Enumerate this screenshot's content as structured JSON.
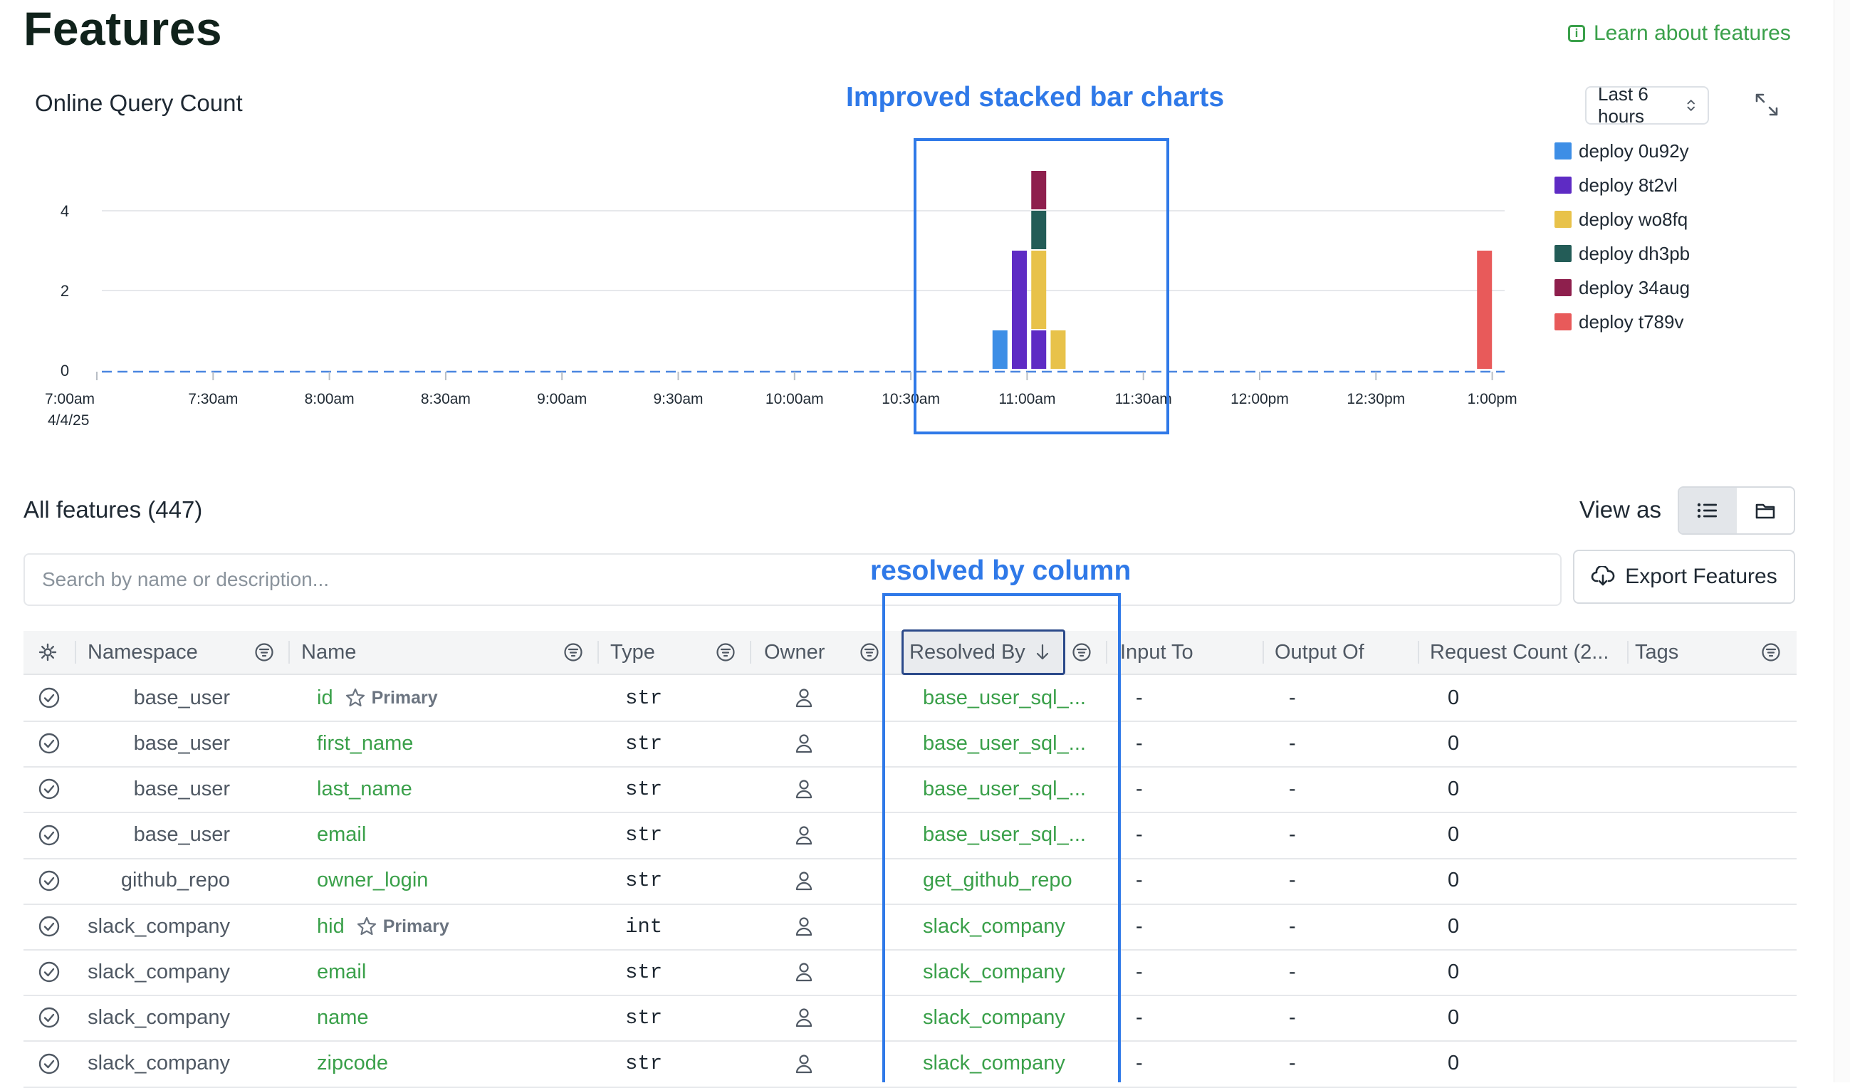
{
  "header": {
    "title": "Features",
    "learn_link": "Learn about features"
  },
  "chart_card": {
    "title": "Online Query Count",
    "time_range": "Last 6 hours",
    "annotation": "Improved stacked bar charts"
  },
  "chart_data": {
    "type": "bar",
    "stacked": true,
    "title": "Online Query Count",
    "ylim": [
      0,
      5
    ],
    "y_ticks": [
      "0",
      "2",
      "4"
    ],
    "x_ticks": [
      "7:00am",
      "7:30am",
      "8:00am",
      "8:30am",
      "9:00am",
      "9:30am",
      "10:00am",
      "10:30am",
      "11:00am",
      "11:30am",
      "12:00pm",
      "12:30pm",
      "1:00pm"
    ],
    "x_date_label": "4/4/25",
    "series": [
      {
        "name": "deploy 0u92y",
        "color": "#3d8ee6",
        "points": [
          {
            "x": "10:53am",
            "y": 1
          }
        ]
      },
      {
        "name": "deploy 8t2vl",
        "color": "#5e2bc4",
        "points": [
          {
            "x": "10:58am",
            "y": 3
          },
          {
            "x": "11:03am",
            "y": 1
          }
        ]
      },
      {
        "name": "deploy wo8fq",
        "color": "#e8c24a",
        "points": [
          {
            "x": "11:03am",
            "y": 2
          },
          {
            "x": "11:08am",
            "y": 1
          }
        ]
      },
      {
        "name": "deploy dh3pb",
        "color": "#235c57",
        "points": [
          {
            "x": "11:03am",
            "y": 1
          }
        ]
      },
      {
        "name": "deploy 34aug",
        "color": "#8e1f4d",
        "points": [
          {
            "x": "11:03am",
            "y": 1
          }
        ]
      },
      {
        "name": "deploy t789v",
        "color": "#e85a5a",
        "points": [
          {
            "x": "12:58pm",
            "y": 3
          }
        ]
      }
    ]
  },
  "features": {
    "count_label": "All features (447)",
    "view_as_label": "View as",
    "search_placeholder": "Search by name or description...",
    "export_label": "Export Features",
    "annotation": "resolved by column",
    "columns": {
      "namespace": "Namespace",
      "name": "Name",
      "type": "Type",
      "owner": "Owner",
      "resolved_by": "Resolved By",
      "input_to": "Input To",
      "output_of": "Output Of",
      "request_count": "Request Count (2...",
      "tags": "Tags"
    },
    "primary_label": "Primary",
    "rows": [
      {
        "namespace": "base_user",
        "name": "id",
        "primary": true,
        "type": "str",
        "resolved_by": "base_user_sql_...",
        "input_to": "-",
        "output_of": "-",
        "request_count": "0"
      },
      {
        "namespace": "base_user",
        "name": "first_name",
        "primary": false,
        "type": "str",
        "resolved_by": "base_user_sql_...",
        "input_to": "-",
        "output_of": "-",
        "request_count": "0"
      },
      {
        "namespace": "base_user",
        "name": "last_name",
        "primary": false,
        "type": "str",
        "resolved_by": "base_user_sql_...",
        "input_to": "-",
        "output_of": "-",
        "request_count": "0"
      },
      {
        "namespace": "base_user",
        "name": "email",
        "primary": false,
        "type": "str",
        "resolved_by": "base_user_sql_...",
        "input_to": "-",
        "output_of": "-",
        "request_count": "0"
      },
      {
        "namespace": "github_repo",
        "name": "owner_login",
        "primary": false,
        "type": "str",
        "resolved_by": "get_github_repo",
        "input_to": "-",
        "output_of": "-",
        "request_count": "0"
      },
      {
        "namespace": "slack_company",
        "name": "hid",
        "primary": true,
        "type": "int",
        "resolved_by": "slack_company",
        "input_to": "-",
        "output_of": "-",
        "request_count": "0"
      },
      {
        "namespace": "slack_company",
        "name": "email",
        "primary": false,
        "type": "str",
        "resolved_by": "slack_company",
        "input_to": "-",
        "output_of": "-",
        "request_count": "0"
      },
      {
        "namespace": "slack_company",
        "name": "name",
        "primary": false,
        "type": "str",
        "resolved_by": "slack_company",
        "input_to": "-",
        "output_of": "-",
        "request_count": "0"
      },
      {
        "namespace": "slack_company",
        "name": "zipcode",
        "primary": false,
        "type": "str",
        "resolved_by": "slack_company",
        "input_to": "-",
        "output_of": "-",
        "request_count": "0"
      }
    ]
  }
}
